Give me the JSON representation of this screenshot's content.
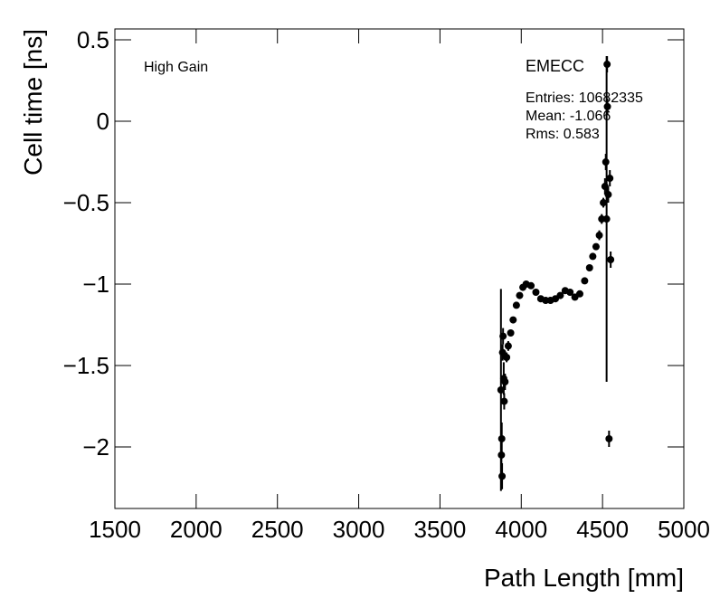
{
  "chart_data": {
    "type": "errorbar",
    "title": "EMECC",
    "annotations": [
      "High Gain",
      "Entries: 10682335",
      "Mean: -1.066",
      "Rms: 0.583"
    ],
    "x_label": "Path Length [mm]",
    "y_label": "Cell time [ns]",
    "xlim": [
      1500,
      5000
    ],
    "ylim": [
      -2.378,
      0.567
    ],
    "xticks": [
      1500,
      2000,
      2500,
      3000,
      3500,
      4000,
      4500,
      5000
    ],
    "yticks": [
      {
        "value": 0.5,
        "label": "0.5"
      },
      {
        "value": 0,
        "label": "0"
      },
      {
        "value": -0.5,
        "label": "−0.5"
      },
      {
        "value": -1,
        "label": "−1"
      },
      {
        "value": -1.5,
        "label": "−1.5"
      },
      {
        "value": -2,
        "label": "−2"
      }
    ],
    "series": [
      {
        "name": "EMECC",
        "color": "#000000",
        "x": [
          3875,
          3878,
          3880,
          3882,
          3885,
          3888,
          3892,
          3895,
          3900,
          3910,
          3920,
          3935,
          3950,
          3970,
          3990,
          4010,
          4030,
          4060,
          4090,
          4120,
          4150,
          4180,
          4210,
          4240,
          4270,
          4300,
          4330,
          4360,
          4390,
          4420,
          4440,
          4460,
          4480,
          4495,
          4505,
          4515,
          4520,
          4525,
          4528,
          4530,
          4535,
          4540,
          4545,
          4550
        ],
        "values": [
          -1.65,
          -2.05,
          -1.95,
          -2.18,
          -1.42,
          -1.32,
          -1.58,
          -1.72,
          -1.6,
          -1.45,
          -1.38,
          -1.3,
          -1.22,
          -1.13,
          -1.07,
          -1.02,
          -1.0,
          -1.01,
          -1.05,
          -1.09,
          -1.1,
          -1.1,
          -1.09,
          -1.07,
          -1.04,
          -1.05,
          -1.08,
          -1.06,
          -0.98,
          -0.9,
          -0.83,
          -0.77,
          -0.7,
          -0.6,
          -0.5,
          -0.4,
          -0.25,
          -0.6,
          0.35,
          0.09,
          -0.45,
          -1.95,
          -0.35,
          -0.85
        ],
        "errors": [
          0.62,
          0.1,
          0.1,
          0.08,
          0.05,
          0.05,
          0.1,
          0.05,
          0.05,
          0.03,
          0.03,
          0.02,
          0.02,
          0.02,
          0.02,
          0.02,
          0.02,
          0.02,
          0.02,
          0.02,
          0.02,
          0.02,
          0.02,
          0.02,
          0.02,
          0.02,
          0.02,
          0.02,
          0.02,
          0.02,
          0.02,
          0.02,
          0.03,
          0.03,
          0.03,
          0.05,
          0.05,
          1.0,
          0.05,
          0.05,
          0.05,
          0.05,
          0.05,
          0.05
        ]
      }
    ]
  }
}
